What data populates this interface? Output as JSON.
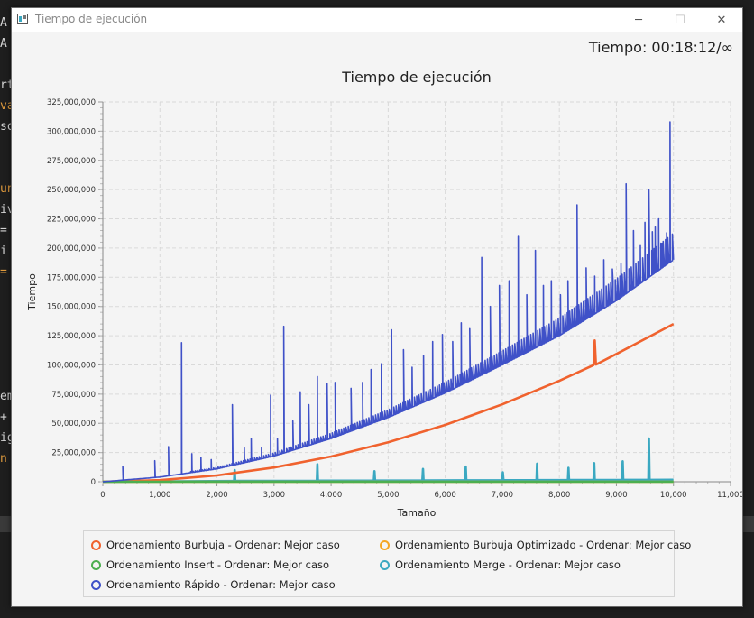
{
  "window": {
    "title": "Tiempo de ejecución",
    "timer": "Tiempo: 00:18:12/∞",
    "buttons": {
      "minimize": "─",
      "maximize": "☐",
      "close": "✕"
    }
  },
  "background_code": [
    {
      "text": "A",
      "color": "#d4d4d4"
    },
    {
      "text": "A",
      "color": "#d4d4d4"
    },
    {
      "text": "",
      "color": "#d4d4d4"
    },
    {
      "text": "rt",
      "color": "#d4d4d4"
    },
    {
      "text": "va",
      "color": "#e09b3d"
    },
    {
      "text": "so",
      "color": "#d4d4d4"
    },
    {
      "text": "",
      "color": "#d4d4d4"
    },
    {
      "text": "",
      "color": "#d4d4d4"
    },
    {
      "text": "un",
      "color": "#e09b3d"
    },
    {
      "text": "iv",
      "color": "#d4d4d4"
    },
    {
      "text": " =",
      "color": "#d4d4d4"
    },
    {
      "text": "i",
      "color": "#d4d4d4"
    },
    {
      "text": "=",
      "color": "#e09b3d"
    },
    {
      "text": "",
      "color": "#d4d4d4"
    },
    {
      "text": "",
      "color": "#d4d4d4"
    },
    {
      "text": "",
      "color": "#d4d4d4"
    },
    {
      "text": "",
      "color": "#d4d4d4"
    },
    {
      "text": "",
      "color": "#d4d4d4"
    },
    {
      "text": "em",
      "color": "#d4d4d4"
    },
    {
      "text": " +",
      "color": "#d4d4d4"
    },
    {
      "text": "ig",
      "color": "#d4d4d4"
    },
    {
      "text": "n",
      "color": "#e09b3d"
    }
  ],
  "chart_data": {
    "type": "line",
    "title": "Tiempo de ejecución",
    "xlabel": "Tamaño",
    "ylabel": "Tiempo",
    "xlim": [
      0,
      11000
    ],
    "ylim": [
      0,
      325000000
    ],
    "x_ticks": [
      "0",
      "1,000",
      "2,000",
      "3,000",
      "4,000",
      "5,000",
      "6,000",
      "7,000",
      "8,000",
      "9,000",
      "10,000",
      "11,000"
    ],
    "y_ticks": [
      "0",
      "25,000,000",
      "50,000,000",
      "75,000,000",
      "100,000,000",
      "125,000,000",
      "150,000,000",
      "175,000,000",
      "200,000,000",
      "225,000,000",
      "250,000,000",
      "275,000,000",
      "300,000,000",
      "325,000,000"
    ],
    "grid": true,
    "legend_position": "bottom",
    "series": [
      {
        "name": "Ordenamiento Burbuja - Ordenar: Mejor caso",
        "color": "#f0622e",
        "x": [
          0,
          1000,
          2000,
          3000,
          4000,
          5000,
          6000,
          7000,
          8000,
          8600,
          8620,
          8640,
          9000,
          10000
        ],
        "y": [
          0,
          1400000,
          5400000,
          12200000,
          21600000,
          33800000,
          48600000,
          66200000,
          86400000,
          99800000,
          121000000,
          100300000,
          109400000,
          135000000
        ]
      },
      {
        "name": "Ordenamiento Burbuja Optimizado - Ordenar: Mejor caso",
        "color": "#f5a623",
        "x": [
          0,
          10000
        ],
        "y": [
          0,
          0
        ]
      },
      {
        "name": "Ordenamiento Insert - Ordenar: Mejor caso",
        "color": "#4caf50",
        "x": [
          0,
          10000
        ],
        "y": [
          0,
          0
        ]
      },
      {
        "name": "Ordenamiento Merge - Ordenar: Mejor caso",
        "color": "#3aa8c1",
        "x": [
          0,
          2300,
          2310,
          2320,
          3750,
          3760,
          3770,
          4750,
          4760,
          4770,
          5600,
          5610,
          5620,
          6350,
          6360,
          6370,
          7000,
          7010,
          7020,
          7600,
          7610,
          7620,
          8150,
          8160,
          8170,
          8600,
          8610,
          8620,
          9100,
          9110,
          9120,
          9560,
          9570,
          9580,
          10000
        ],
        "y": [
          0,
          600000,
          10000000,
          700000,
          800000,
          15000000,
          900000,
          1000000,
          9000000,
          1000000,
          1100000,
          11000000,
          1100000,
          1200000,
          13000000,
          1200000,
          1300000,
          8000000,
          1300000,
          1400000,
          15500000,
          1400000,
          1500000,
          12000000,
          1500000,
          1500000,
          16000000,
          1500000,
          1600000,
          17500000,
          1600000,
          1600000,
          37000000,
          1600000,
          1700000
        ]
      },
      {
        "name": "Ordenamiento Rápido - Ordenar: Mejor caso",
        "color": "#3f51c8",
        "x": [
          0,
          1000,
          2000,
          3000,
          4000,
          5000,
          6000,
          7000,
          8000,
          9000,
          10000
        ],
        "y": [
          0,
          4000000,
          11000000,
          22000000,
          37000000,
          55000000,
          76000000,
          100000000,
          125000000,
          155000000,
          190000000
        ],
        "spikes": [
          [
            350,
            13000000
          ],
          [
            910,
            18000000
          ],
          [
            1150,
            30000000
          ],
          [
            1380,
            119000000
          ],
          [
            1560,
            24000000
          ],
          [
            1720,
            21000000
          ],
          [
            1900,
            19000000
          ],
          [
            2270,
            66000000
          ],
          [
            2480,
            29000000
          ],
          [
            2600,
            37000000
          ],
          [
            2780,
            29000000
          ],
          [
            2940,
            74000000
          ],
          [
            3060,
            37000000
          ],
          [
            3170,
            133000000
          ],
          [
            3330,
            52000000
          ],
          [
            3460,
            77000000
          ],
          [
            3610,
            66000000
          ],
          [
            3760,
            90000000
          ],
          [
            3930,
            84000000
          ],
          [
            4070,
            85000000
          ],
          [
            4350,
            80000000
          ],
          [
            4550,
            85000000
          ],
          [
            4700,
            96000000
          ],
          [
            4880,
            101000000
          ],
          [
            5060,
            130000000
          ],
          [
            5270,
            113000000
          ],
          [
            5420,
            98000000
          ],
          [
            5620,
            108000000
          ],
          [
            5780,
            120000000
          ],
          [
            5950,
            126000000
          ],
          [
            6130,
            120000000
          ],
          [
            6280,
            136000000
          ],
          [
            6430,
            131000000
          ],
          [
            6640,
            192000000
          ],
          [
            6790,
            150000000
          ],
          [
            6950,
            168000000
          ],
          [
            7120,
            172000000
          ],
          [
            7280,
            210000000
          ],
          [
            7430,
            160000000
          ],
          [
            7580,
            198000000
          ],
          [
            7720,
            168000000
          ],
          [
            7860,
            172000000
          ],
          [
            8020,
            160000000
          ],
          [
            8150,
            172000000
          ],
          [
            8310,
            237000000
          ],
          [
            8470,
            183000000
          ],
          [
            8620,
            176000000
          ],
          [
            8780,
            190000000
          ],
          [
            8930,
            182000000
          ],
          [
            9080,
            187000000
          ],
          [
            9170,
            255000000
          ],
          [
            9300,
            215000000
          ],
          [
            9420,
            202000000
          ],
          [
            9500,
            222000000
          ],
          [
            9570,
            250000000
          ],
          [
            9630,
            214000000
          ],
          [
            9680,
            218000000
          ],
          [
            9740,
            225000000
          ],
          [
            9800,
            204000000
          ],
          [
            9880,
            213000000
          ],
          [
            9940,
            308000000
          ]
        ]
      }
    ]
  }
}
